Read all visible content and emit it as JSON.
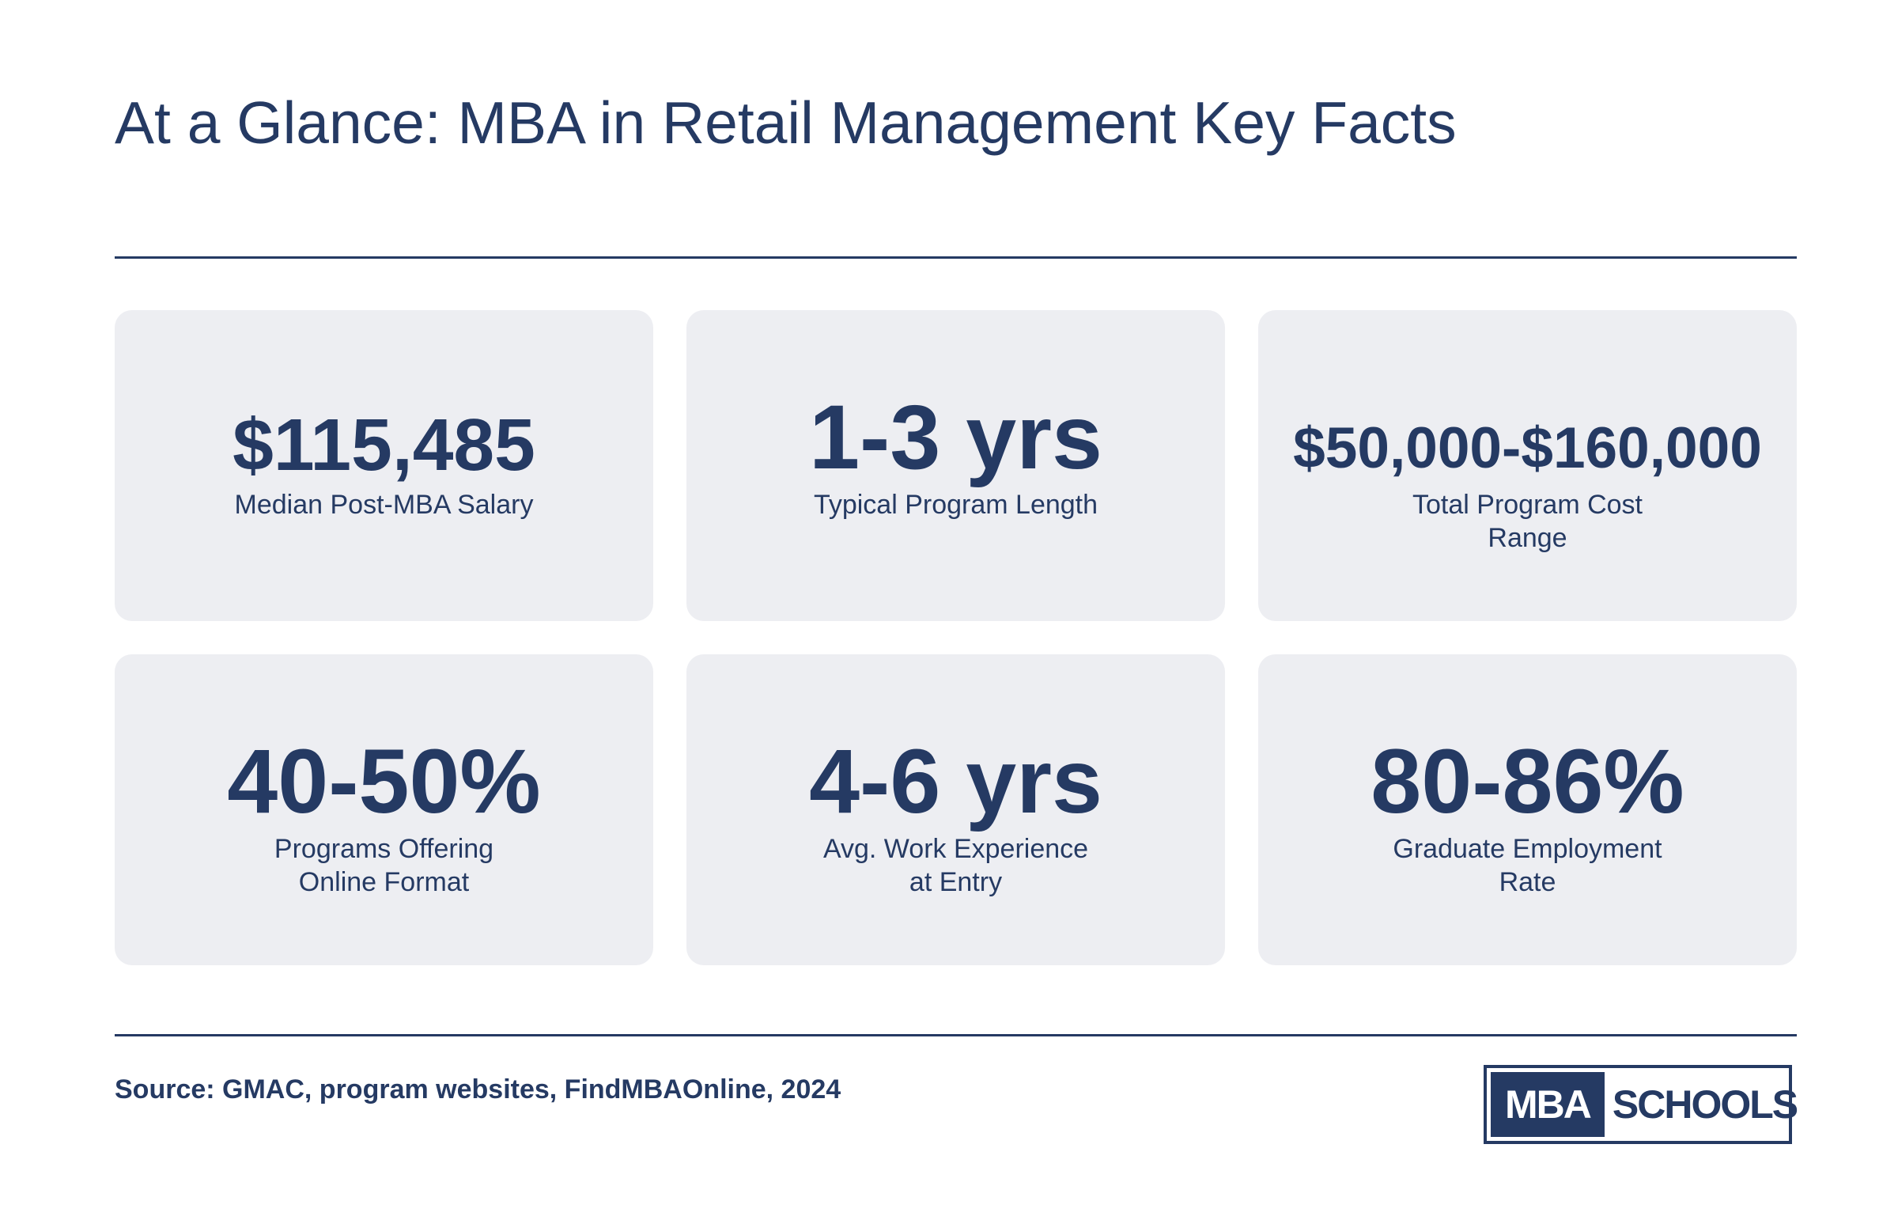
{
  "title": "At a Glance: MBA in Retail Management Key Facts",
  "facts": [
    {
      "value": "$115,485",
      "label": "Median Post-MBA Salary"
    },
    {
      "value": "1-3 yrs",
      "label": "Typical Program Length"
    },
    {
      "value": "$50,000-$160,000",
      "label": "Total Program Cost\nRange"
    },
    {
      "value": "40-50%",
      "label": "Programs Offering\nOnline Format"
    },
    {
      "value": "4-6 yrs",
      "label": "Avg. Work Experience\nat Entry"
    },
    {
      "value": "80-86%",
      "label": "Graduate Employment\nRate"
    }
  ],
  "source": "Source: GMAC, program websites, FindMBAOnline, 2024",
  "logo": {
    "left": "MBA",
    "right": "SCHOOLS"
  },
  "colors": {
    "primary": "#253a63",
    "card_bg": "#edeef2",
    "background": "#ffffff"
  }
}
